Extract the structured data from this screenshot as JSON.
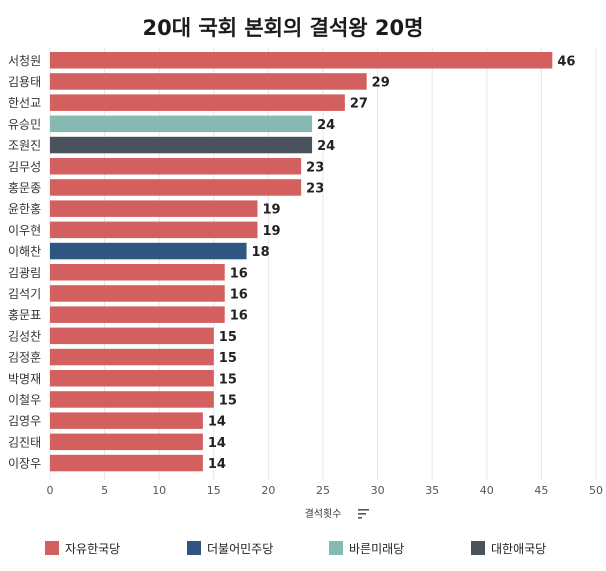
{
  "chart_data": {
    "type": "bar",
    "orientation": "horizontal",
    "title": "20대 국회 본회의 결석왕 20명",
    "xlabel": "결석횟수",
    "ylabel": "",
    "xlim": [
      0,
      50
    ],
    "ticks": [
      0,
      5,
      10,
      15,
      20,
      25,
      30,
      35,
      40,
      45,
      50
    ],
    "grid": true,
    "legend_position": "bottom",
    "legend": [
      {
        "name": "자유한국당",
        "color": "#d35f5f"
      },
      {
        "name": "더불어민주당",
        "color": "#2f5680"
      },
      {
        "name": "바른미래당",
        "color": "#86b9b0"
      },
      {
        "name": "대한애국당",
        "color": "#4a525c"
      }
    ],
    "categories": [
      "서청원",
      "김용태",
      "한선교",
      "유승민",
      "조원진",
      "김무성",
      "홍문종",
      "윤한홍",
      "이우현",
      "이해찬",
      "김광림",
      "김석기",
      "홍문표",
      "김성찬",
      "김정훈",
      "박명재",
      "이철우",
      "김영우",
      "김진태",
      "이장우"
    ],
    "values": [
      46,
      29,
      27,
      24,
      24,
      23,
      23,
      19,
      19,
      18,
      16,
      16,
      16,
      15,
      15,
      15,
      15,
      14,
      14,
      14
    ],
    "parties": [
      "자유한국당",
      "자유한국당",
      "자유한국당",
      "바른미래당",
      "대한애국당",
      "자유한국당",
      "자유한국당",
      "자유한국당",
      "자유한국당",
      "더불어민주당",
      "자유한국당",
      "자유한국당",
      "자유한국당",
      "자유한국당",
      "자유한국당",
      "자유한국당",
      "자유한국당",
      "자유한국당",
      "자유한국당",
      "자유한국당"
    ]
  },
  "toolbar": {
    "sort_icon": "sort-icon"
  }
}
